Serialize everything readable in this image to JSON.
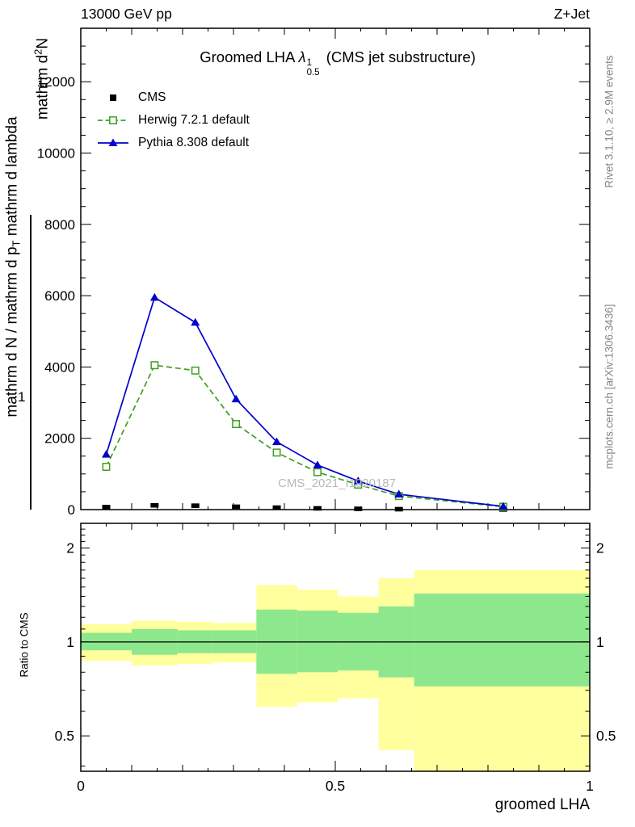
{
  "header": {
    "left": "13000 GeV pp",
    "right": "Z+Jet"
  },
  "plot_title": {
    "prefix": "Groomed LHA",
    "symbol": "λ",
    "sup": "1",
    "sub": "0.5",
    "suffix": " (CMS jet substructure)"
  },
  "watermark": "CMS_2021_I1920187",
  "side_notes": {
    "rivet": "Rivet 3.1.10, ≥ 2.9M events",
    "mcplots": "mcplots.cern.ch [arXiv:1306.3436]"
  },
  "y_axis_label_fragments": {
    "numerator": "1",
    "d2n": {
      "pre": "mathrm d",
      "sup": "2",
      "post": "N"
    },
    "denominator": {
      "pre": "mathrm d N / mathrm d p",
      "sub": "T",
      "post": " mathrm d lambda"
    }
  },
  "ratio_axis_label": "Ratio to CMS",
  "x_axis": {
    "label": "groomed LHA"
  },
  "chart_data": {
    "type": "line",
    "title": "Groomed LHA λ^1_0.5 (CMS jet substructure)",
    "xlabel": "groomed LHA",
    "ylabel": "1 / mathrm d N · mathrm d²N / mathrm d p_T mathrm d lambda (garbled LaTeX as shown)",
    "xlim": [
      0,
      1
    ],
    "ylim": [
      0,
      13500
    ],
    "grid": false,
    "legend_position": "top-left",
    "x_ticks": {
      "values": [
        0,
        0.5,
        1
      ],
      "labels": [
        "0",
        "0.5",
        "1"
      ]
    },
    "y_ticks": {
      "values": [
        0,
        2000,
        4000,
        6000,
        8000,
        10000,
        12000
      ],
      "labels": [
        "0",
        "2000",
        "4000",
        "6000",
        "8000",
        "10000",
        "12000"
      ]
    },
    "y_major_step": 2000,
    "y_minor_step": 500,
    "x": [
      0.05,
      0.145,
      0.225,
      0.305,
      0.385,
      0.465,
      0.545,
      0.625,
      0.83
    ],
    "series": [
      {
        "name": "CMS",
        "color": "#000000",
        "style": "markers",
        "marker": "filled-square",
        "values": [
          70,
          120,
          110,
          80,
          55,
          35,
          22,
          12,
          4
        ]
      },
      {
        "name": "Herwig 7.2.1 default",
        "color": "#3f9e1f",
        "style": "dashed-line",
        "marker": "open-square",
        "values": [
          1200,
          4050,
          3900,
          2400,
          1600,
          1050,
          700,
          380,
          80
        ]
      },
      {
        "name": "Pythia 8.308 default",
        "color": "#0000cc",
        "style": "solid-line",
        "marker": "filled-triangle",
        "values": [
          1550,
          5950,
          5250,
          3100,
          1900,
          1250,
          800,
          430,
          90
        ]
      }
    ],
    "ratio_panel": {
      "ylabel": "Ratio to CMS",
      "scale": "log",
      "ylim": [
        0.385,
        2.4
      ],
      "reference_line": 1,
      "y_ticks": {
        "values": [
          0.5,
          1,
          2
        ],
        "labels": [
          "0.5",
          "1",
          "2"
        ]
      },
      "y_minor_ticks": [
        0.4,
        0.6,
        0.7,
        0.8,
        0.9,
        1.1,
        1.2,
        1.3,
        1.4,
        1.5,
        1.6,
        1.7,
        1.8,
        1.9,
        2.1,
        2.2,
        2.3
      ],
      "outer_band_color": "#ffff9e",
      "inner_band_color": "#8de88d",
      "band_bins": [
        [
          0,
          0.1
        ],
        [
          0.1,
          0.19
        ],
        [
          0.19,
          0.26
        ],
        [
          0.26,
          0.345
        ],
        [
          0.345,
          0.425
        ],
        [
          0.425,
          0.505
        ],
        [
          0.505,
          0.585
        ],
        [
          0.585,
          0.655
        ],
        [
          0.655,
          1.0
        ]
      ],
      "outer_band": [
        [
          0.87,
          1.14
        ],
        [
          0.84,
          1.17
        ],
        [
          0.85,
          1.16
        ],
        [
          0.86,
          1.15
        ],
        [
          0.62,
          1.52
        ],
        [
          0.64,
          1.47
        ],
        [
          0.66,
          1.4
        ],
        [
          0.45,
          1.6
        ],
        [
          0.37,
          1.7
        ]
      ],
      "inner_band": [
        [
          0.94,
          1.07
        ],
        [
          0.91,
          1.1
        ],
        [
          0.92,
          1.09
        ],
        [
          0.92,
          1.09
        ],
        [
          0.79,
          1.27
        ],
        [
          0.8,
          1.26
        ],
        [
          0.81,
          1.24
        ],
        [
          0.77,
          1.3
        ],
        [
          0.72,
          1.43
        ]
      ]
    }
  }
}
